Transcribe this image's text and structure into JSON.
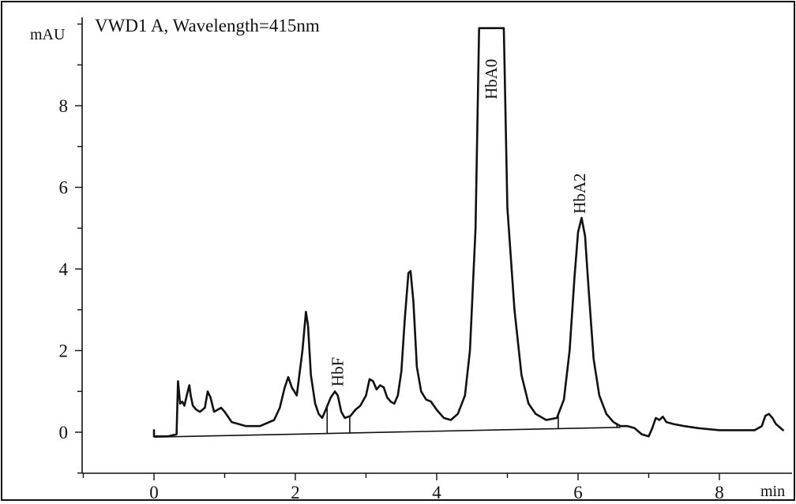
{
  "chart_data": {
    "type": "line",
    "title": "VWD1 A, Wavelength=415nm",
    "ylabel": "mAU",
    "xlabel": "min",
    "xlim": [
      -1.0,
      8.9
    ],
    "ylim": [
      -1.0,
      10.0
    ],
    "x_ticks": [
      0,
      2,
      4,
      6,
      8
    ],
    "x_tick_labels": [
      "0",
      "2",
      "4",
      "6",
      "8"
    ],
    "y_ticks": [
      0,
      2,
      4,
      6,
      8
    ],
    "y_tick_labels": [
      "0",
      "2",
      "4",
      "6",
      "8"
    ],
    "grid": false,
    "series": [
      {
        "x": [
          0.0,
          0.0,
          0.2,
          0.32,
          0.34,
          0.37,
          0.4,
          0.43,
          0.47,
          0.5,
          0.52,
          0.55,
          0.6,
          0.65,
          0.72,
          0.76,
          0.8,
          0.85,
          0.9,
          0.95,
          1.0,
          1.1,
          1.3,
          1.5,
          1.7,
          1.78,
          1.85,
          1.9,
          1.95,
          2.02,
          2.1,
          2.15,
          2.18,
          2.22,
          2.28,
          2.33,
          2.38,
          2.43,
          2.5,
          2.56,
          2.6,
          2.65,
          2.7,
          2.78,
          2.85,
          2.92,
          3.0,
          3.05,
          3.1,
          3.15,
          3.2,
          3.25,
          3.3,
          3.35,
          3.4,
          3.45,
          3.5,
          3.55,
          3.6,
          3.63,
          3.67,
          3.72,
          3.78,
          3.85,
          3.92,
          4.0,
          4.1,
          4.2,
          4.3,
          4.4,
          4.47,
          4.55,
          4.6,
          4.95,
          5.0,
          5.1,
          5.2,
          5.3,
          5.4,
          5.55,
          5.7,
          5.8,
          5.88,
          5.95,
          6.0,
          6.05,
          6.1,
          6.15,
          6.22,
          6.3,
          6.4,
          6.5,
          6.6,
          6.7,
          6.8,
          6.9,
          7.0,
          7.05,
          7.1,
          7.15,
          7.2,
          7.25,
          7.35,
          7.5,
          7.7,
          8.0,
          8.3,
          8.5,
          8.6,
          8.65,
          8.7,
          8.75,
          8.8,
          8.9
        ],
        "y": [
          0.05,
          -0.1,
          -0.1,
          -0.05,
          1.25,
          0.7,
          0.75,
          0.65,
          0.95,
          1.15,
          0.9,
          0.65,
          0.55,
          0.5,
          0.6,
          1.0,
          0.85,
          0.5,
          0.55,
          0.6,
          0.5,
          0.25,
          0.15,
          0.15,
          0.3,
          0.6,
          1.1,
          1.35,
          1.1,
          0.9,
          2.0,
          2.95,
          2.6,
          1.4,
          0.7,
          0.45,
          0.35,
          0.55,
          0.85,
          1.0,
          0.9,
          0.5,
          0.35,
          0.4,
          0.55,
          0.65,
          0.9,
          1.3,
          1.25,
          1.05,
          1.15,
          1.1,
          0.85,
          0.75,
          0.7,
          0.9,
          1.5,
          2.8,
          3.9,
          3.95,
          3.2,
          1.6,
          1.0,
          0.8,
          0.75,
          0.55,
          0.35,
          0.3,
          0.45,
          0.9,
          2.0,
          5.0,
          9.9,
          9.9,
          5.5,
          3.0,
          1.4,
          0.7,
          0.45,
          0.3,
          0.35,
          0.8,
          2.0,
          3.8,
          4.9,
          5.25,
          4.8,
          3.5,
          1.8,
          0.9,
          0.45,
          0.25,
          0.15,
          0.15,
          0.1,
          -0.05,
          -0.1,
          0.1,
          0.35,
          0.3,
          0.38,
          0.25,
          0.2,
          0.15,
          0.1,
          0.05,
          0.05,
          0.05,
          0.15,
          0.4,
          0.45,
          0.35,
          0.2,
          0.05
        ]
      }
    ],
    "integration_baseline": {
      "x": [
        0.0,
        6.6
      ],
      "y": [
        -0.12,
        0.12
      ]
    },
    "integration_markers": [
      2.45,
      2.77,
      5.72,
      6.55
    ],
    "annotations": [
      {
        "text": "HbF",
        "x": 2.6,
        "y": 1.48
      },
      {
        "text": "HbA0",
        "x": 4.77,
        "y": 8.65
      },
      {
        "text": "HbA2",
        "x": 6.02,
        "y": 5.85
      }
    ]
  }
}
